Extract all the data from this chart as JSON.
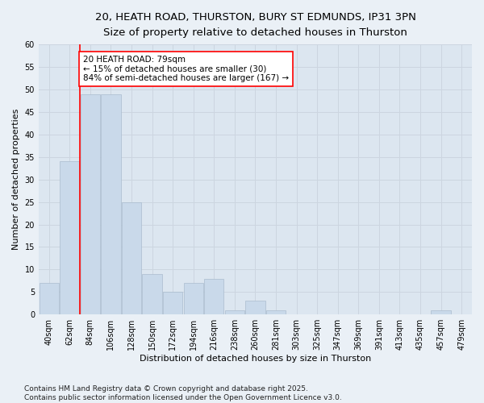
{
  "title_line1": "20, HEATH ROAD, THURSTON, BURY ST EDMUNDS, IP31 3PN",
  "title_line2": "Size of property relative to detached houses in Thurston",
  "xlabel": "Distribution of detached houses by size in Thurston",
  "ylabel": "Number of detached properties",
  "categories": [
    "40sqm",
    "62sqm",
    "84sqm",
    "106sqm",
    "128sqm",
    "150sqm",
    "172sqm",
    "194sqm",
    "216sqm",
    "238sqm",
    "260sqm",
    "281sqm",
    "303sqm",
    "325sqm",
    "347sqm",
    "369sqm",
    "391sqm",
    "413sqm",
    "435sqm",
    "457sqm",
    "479sqm"
  ],
  "values": [
    7,
    34,
    49,
    49,
    25,
    9,
    5,
    7,
    8,
    1,
    3,
    1,
    0,
    0,
    0,
    0,
    0,
    0,
    0,
    1,
    0
  ],
  "bar_color": "#c9d9ea",
  "bar_edge_color": "#aabcce",
  "vline_x": 1.5,
  "vline_color": "red",
  "annotation_text": "20 HEATH ROAD: 79sqm\n← 15% of detached houses are smaller (30)\n84% of semi-detached houses are larger (167) →",
  "annotation_box_color": "white",
  "annotation_box_edge_color": "red",
  "ylim": [
    0,
    60
  ],
  "yticks": [
    0,
    5,
    10,
    15,
    20,
    25,
    30,
    35,
    40,
    45,
    50,
    55,
    60
  ],
  "grid_color": "#ccd5e0",
  "background_color": "#dce6f0",
  "fig_background_color": "#eaf0f6",
  "footer_text": "Contains HM Land Registry data © Crown copyright and database right 2025.\nContains public sector information licensed under the Open Government Licence v3.0.",
  "title_fontsize": 9.5,
  "subtitle_fontsize": 8.5,
  "axis_label_fontsize": 8,
  "tick_fontsize": 7,
  "annotation_fontsize": 7.5,
  "footer_fontsize": 6.5
}
